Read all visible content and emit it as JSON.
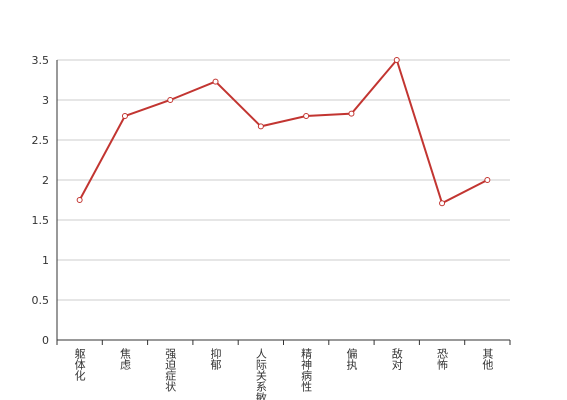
{
  "chart_data": {
    "type": "line",
    "categories": [
      "躯体化",
      "焦虑",
      "强迫症状",
      "抑郁",
      "人际关系敏感",
      "精神病性",
      "偏执",
      "敌对",
      "恐怖",
      "其他"
    ],
    "values": [
      1.75,
      2.8,
      3.0,
      3.23,
      2.67,
      2.8,
      2.83,
      3.5,
      1.71,
      2.0
    ],
    "color": "#c23531",
    "ylim": [
      0,
      3.5
    ],
    "yticks": [
      0,
      0.5,
      1,
      1.5,
      2,
      2.5,
      3,
      3.5
    ],
    "grid": true
  }
}
